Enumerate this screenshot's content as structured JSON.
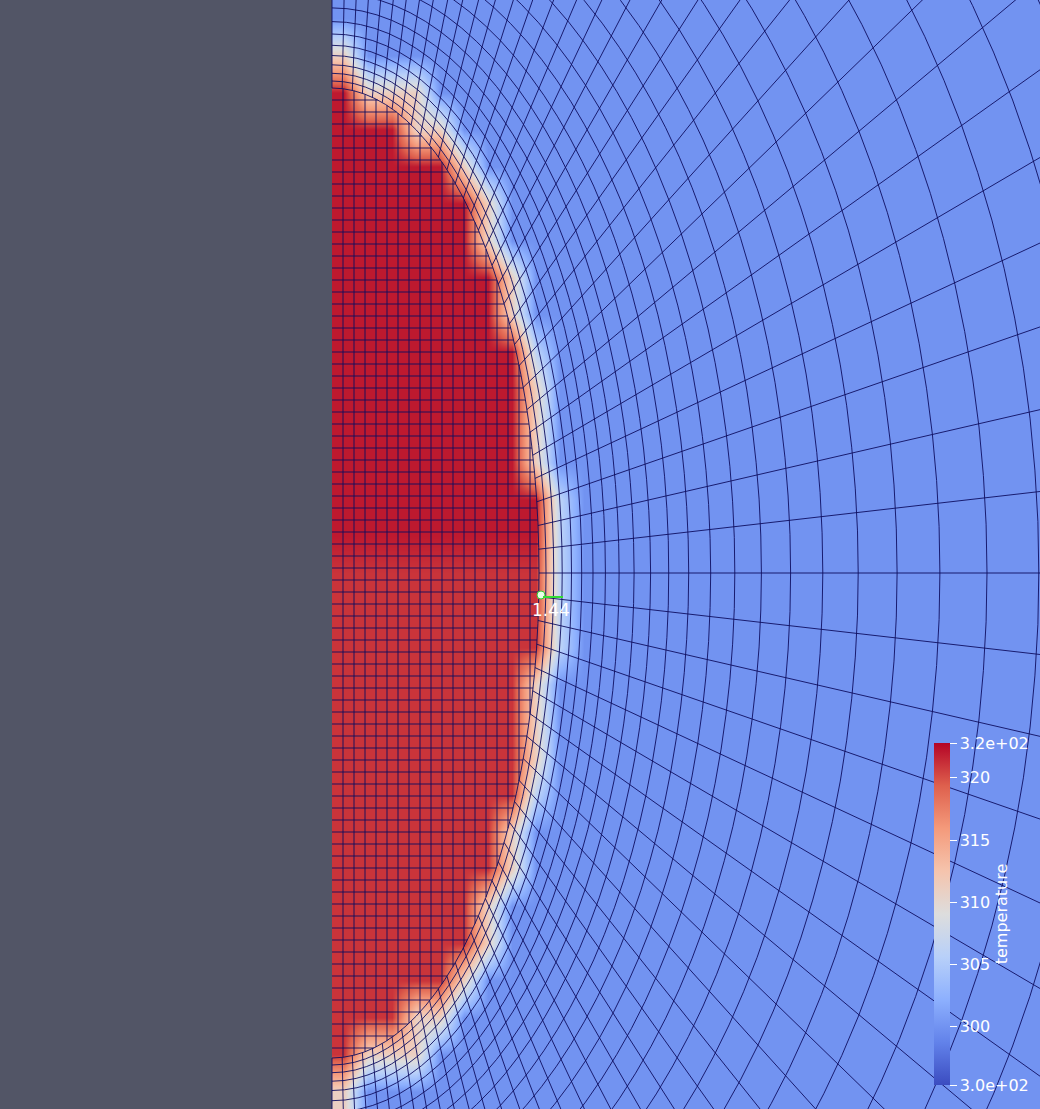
{
  "chart_data": {
    "type": "heatmap",
    "tick_labels": false,
    "annotation": "1.44",
    "colorbar": {
      "title": "temperature",
      "range": [
        295.3,
        322.8
      ],
      "ticks": [
        {
          "value": 322.8,
          "label": "3.2e+02"
        },
        320,
        315,
        310,
        305,
        300,
        {
          "value": 295.3,
          "label": "3.0e+02"
        }
      ]
    },
    "cells": [
      [
        300,
        300,
        300,
        300,
        300,
        300,
        300,
        300,
        300,
        300,
        300,
        300,
        300,
        300,
        300,
        300,
        300,
        300,
        300,
        300,
        300,
        300,
        300,
        300,
        300,
        300,
        300,
        300,
        300,
        300
      ],
      [
        311,
        300,
        300,
        300,
        300,
        300,
        300,
        300,
        300,
        300,
        300,
        300,
        300,
        300,
        300,
        300,
        300,
        300,
        300,
        300,
        300,
        300,
        300,
        300,
        300,
        300,
        300,
        300,
        300,
        300
      ],
      [
        322,
        311,
        311,
        311,
        300,
        300,
        300,
        300,
        300,
        300,
        300,
        300,
        300,
        300,
        300,
        300,
        300,
        300,
        300,
        300,
        300,
        300,
        300,
        300,
        300,
        300,
        300,
        300,
        300,
        300
      ],
      [
        322,
        322,
        322,
        311,
        311,
        300,
        300,
        300,
        300,
        300,
        300,
        300,
        300,
        300,
        300,
        300,
        300,
        300,
        300,
        300,
        300,
        300,
        300,
        300,
        300,
        300,
        300,
        300,
        300,
        300
      ],
      [
        322,
        322,
        322,
        322,
        322,
        311,
        300,
        300,
        300,
        300,
        300,
        300,
        300,
        300,
        300,
        300,
        300,
        300,
        300,
        300,
        300,
        300,
        300,
        300,
        300,
        300,
        300,
        300,
        300,
        300
      ],
      [
        322,
        322,
        322,
        322,
        322,
        322,
        311,
        300,
        300,
        300,
        300,
        300,
        300,
        300,
        300,
        300,
        300,
        300,
        300,
        300,
        300,
        300,
        300,
        300,
        300,
        300,
        300,
        300,
        300,
        300
      ],
      [
        322,
        322,
        322,
        322,
        322,
        322,
        311,
        300,
        300,
        300,
        300,
        300,
        300,
        300,
        300,
        300,
        300,
        300,
        300,
        300,
        300,
        300,
        300,
        300,
        300,
        300,
        300,
        300,
        300,
        300
      ],
      [
        322,
        322,
        322,
        322,
        322,
        322,
        322,
        311,
        300,
        300,
        300,
        300,
        300,
        300,
        300,
        300,
        300,
        300,
        300,
        300,
        300,
        300,
        300,
        300,
        300,
        300,
        300,
        300,
        300,
        300
      ],
      [
        322,
        322,
        322,
        322,
        322,
        322,
        322,
        311,
        300,
        300,
        300,
        300,
        300,
        300,
        300,
        300,
        300,
        300,
        300,
        300,
        300,
        300,
        300,
        300,
        300,
        300,
        300,
        300,
        300,
        300
      ],
      [
        322,
        322,
        322,
        322,
        322,
        322,
        322,
        322,
        306,
        300,
        300,
        300,
        300,
        300,
        300,
        300,
        300,
        300,
        300,
        300,
        300,
        300,
        300,
        300,
        300,
        300,
        300,
        300,
        300,
        300
      ],
      [
        322,
        322,
        322,
        322,
        322,
        322,
        322,
        322,
        311,
        300,
        300,
        300,
        300,
        300,
        300,
        300,
        300,
        300,
        300,
        300,
        300,
        300,
        300,
        300,
        300,
        300,
        300,
        300,
        300,
        300
      ],
      [
        322,
        322,
        322,
        322,
        322,
        322,
        322,
        322,
        311,
        300,
        300,
        300,
        300,
        300,
        300,
        300,
        300,
        300,
        300,
        300,
        300,
        300,
        300,
        300,
        300,
        300,
        300,
        300,
        300,
        300
      ],
      [
        322,
        322,
        322,
        322,
        322,
        322,
        322,
        322,
        311,
        300,
        300,
        300,
        300,
        300,
        300,
        300,
        300,
        300,
        300,
        300,
        300,
        300,
        300,
        300,
        300,
        300,
        300,
        300,
        300,
        300
      ],
      [
        322,
        322,
        322,
        322,
        322,
        322,
        322,
        322,
        322,
        306,
        300,
        300,
        300,
        300,
        300,
        300,
        300,
        300,
        300,
        300,
        300,
        300,
        300,
        300,
        300,
        300,
        300,
        300,
        300,
        300
      ],
      [
        322,
        322,
        322,
        322,
        322,
        322,
        322,
        322,
        322,
        306,
        300,
        300,
        300,
        300,
        300,
        300,
        300,
        300,
        300,
        300,
        300,
        300,
        300,
        300,
        300,
        300,
        300,
        300,
        300,
        300
      ],
      [
        321,
        321,
        321,
        321,
        321,
        321,
        321,
        321,
        321,
        306,
        300,
        300,
        300,
        300,
        300,
        300,
        300,
        300,
        300,
        300,
        300,
        300,
        300,
        300,
        300,
        300,
        300,
        300,
        300,
        300
      ],
      [
        321,
        321,
        321,
        321,
        321,
        321,
        321,
        321,
        321,
        306,
        300,
        300,
        300,
        300,
        300,
        300,
        300,
        300,
        300,
        300,
        300,
        300,
        300,
        300,
        300,
        300,
        300,
        300,
        300,
        300
      ],
      [
        321,
        321,
        321,
        321,
        321,
        321,
        321,
        321,
        321,
        306,
        300,
        300,
        300,
        300,
        300,
        300,
        300,
        300,
        300,
        300,
        300,
        300,
        300,
        300,
        300,
        300,
        300,
        300,
        300,
        300
      ],
      [
        321,
        321,
        321,
        321,
        321,
        321,
        321,
        321,
        311,
        300,
        300,
        300,
        300,
        300,
        300,
        300,
        300,
        300,
        300,
        300,
        300,
        300,
        300,
        300,
        300,
        300,
        300,
        300,
        300,
        300
      ],
      [
        321,
        321,
        321,
        321,
        321,
        321,
        321,
        321,
        311,
        300,
        300,
        300,
        300,
        300,
        300,
        300,
        300,
        300,
        300,
        300,
        300,
        300,
        300,
        300,
        300,
        300,
        300,
        300,
        300,
        300
      ],
      [
        321,
        321,
        321,
        321,
        321,
        321,
        321,
        321,
        311,
        300,
        300,
        300,
        300,
        300,
        300,
        300,
        300,
        300,
        300,
        300,
        300,
        300,
        300,
        300,
        300,
        300,
        300,
        300,
        300,
        300
      ],
      [
        321,
        321,
        321,
        321,
        321,
        321,
        321,
        321,
        306,
        300,
        300,
        300,
        300,
        300,
        300,
        300,
        300,
        300,
        300,
        300,
        300,
        300,
        300,
        300,
        300,
        300,
        300,
        300,
        300,
        300
      ],
      [
        321,
        321,
        321,
        321,
        321,
        321,
        321,
        311,
        300,
        300,
        300,
        300,
        300,
        300,
        300,
        300,
        300,
        300,
        300,
        300,
        300,
        300,
        300,
        300,
        300,
        300,
        300,
        300,
        300,
        300
      ],
      [
        321,
        321,
        321,
        321,
        321,
        321,
        321,
        311,
        300,
        300,
        300,
        300,
        300,
        300,
        300,
        300,
        300,
        300,
        300,
        300,
        300,
        300,
        300,
        300,
        300,
        300,
        300,
        300,
        300,
        300
      ],
      [
        321,
        321,
        321,
        321,
        321,
        321,
        311,
        300,
        300,
        300,
        300,
        300,
        300,
        300,
        300,
        300,
        300,
        300,
        300,
        300,
        300,
        300,
        300,
        300,
        300,
        300,
        300,
        300,
        300,
        300
      ],
      [
        321,
        321,
        321,
        321,
        321,
        321,
        311,
        300,
        300,
        300,
        300,
        300,
        300,
        300,
        300,
        300,
        300,
        300,
        300,
        300,
        300,
        300,
        300,
        300,
        300,
        300,
        300,
        300,
        300,
        300
      ],
      [
        321,
        321,
        321,
        321,
        321,
        311,
        300,
        300,
        300,
        300,
        300,
        300,
        300,
        300,
        300,
        300,
        300,
        300,
        300,
        300,
        300,
        300,
        300,
        300,
        300,
        300,
        300,
        300,
        300,
        300
      ],
      [
        321,
        321,
        321,
        311,
        311,
        300,
        300,
        300,
        300,
        300,
        300,
        300,
        300,
        300,
        300,
        300,
        300,
        300,
        300,
        300,
        300,
        300,
        300,
        300,
        300,
        300,
        300,
        300,
        300,
        300
      ],
      [
        321,
        311,
        311,
        311,
        300,
        300,
        300,
        300,
        300,
        300,
        300,
        300,
        300,
        300,
        300,
        300,
        300,
        300,
        300,
        300,
        300,
        300,
        300,
        300,
        300,
        300,
        300,
        300,
        300,
        300
      ],
      [
        311,
        300,
        300,
        300,
        300,
        300,
        300,
        300,
        300,
        300,
        300,
        300,
        300,
        300,
        300,
        300,
        300,
        300,
        300,
        300,
        300,
        300,
        300,
        300,
        300,
        300,
        300,
        300,
        300,
        300
      ]
    ]
  }
}
